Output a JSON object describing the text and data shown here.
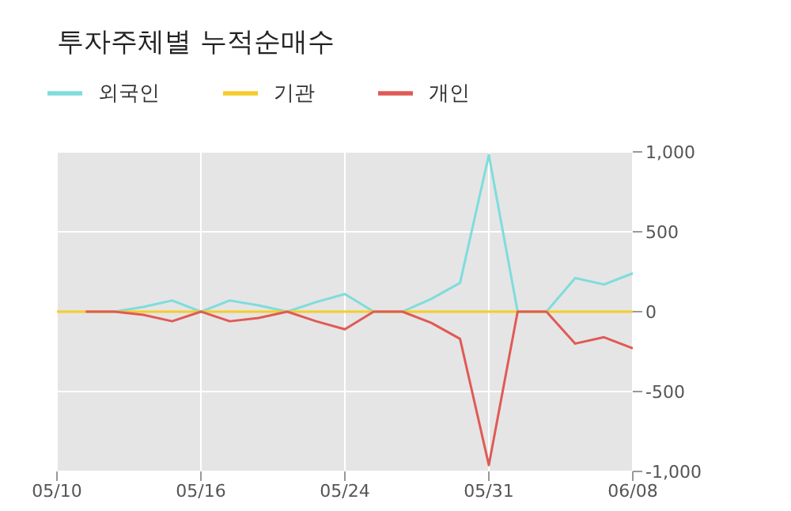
{
  "chart_data": {
    "type": "line",
    "title": "투자주체별 누적순매수",
    "categories": [
      "05/10",
      null,
      null,
      null,
      null,
      "05/16",
      null,
      null,
      null,
      null,
      "05/24",
      null,
      null,
      null,
      null,
      "05/31",
      null,
      null,
      null,
      null,
      "06/08"
    ],
    "series": [
      {
        "name": "외국인",
        "color": "#7fdcdc",
        "values": [
          null,
          0,
          0,
          30,
          70,
          0,
          70,
          40,
          0,
          60,
          110,
          0,
          0,
          80,
          180,
          980,
          0,
          0,
          210,
          170,
          240
        ]
      },
      {
        "name": "기관",
        "color": "#f5cc2a",
        "values": [
          0,
          0,
          0,
          0,
          0,
          0,
          0,
          0,
          0,
          0,
          0,
          0,
          0,
          0,
          0,
          0,
          0,
          0,
          0,
          0,
          0
        ]
      },
      {
        "name": "개인",
        "color": "#e05a55",
        "values": [
          null,
          0,
          0,
          -20,
          -60,
          0,
          -60,
          -40,
          0,
          -60,
          -110,
          0,
          0,
          -70,
          -170,
          -960,
          0,
          0,
          -200,
          -160,
          -230
        ]
      }
    ],
    "ylim": [
      -1000,
      1000
    ],
    "yticks": [
      {
        "value": -1000,
        "label": "-1,000"
      },
      {
        "value": -500,
        "label": "-500"
      },
      0,
      500,
      {
        "value": 1000,
        "label": "1,000"
      }
    ],
    "grid": true,
    "legend": "top left",
    "marker": "none",
    "line_style": "solid"
  }
}
